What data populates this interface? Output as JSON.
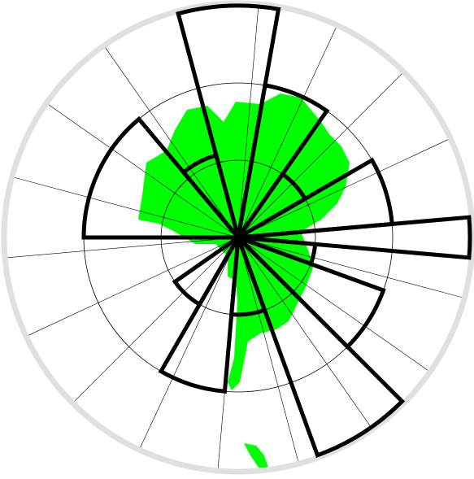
{
  "chart_data": {
    "type": "polar-bar",
    "theta": [
      155,
      117.5,
      92.5,
      67.5,
      42.5,
      17.5,
      0,
      -12.5,
      -32.5,
      -57.5,
      -82.5,
      -107.5,
      -132.5
    ],
    "width": [
      50,
      25,
      25,
      25,
      25,
      25,
      10,
      15,
      25,
      25,
      25,
      25,
      25
    ],
    "values": [
      2,
      1.1,
      3,
      2,
      1,
      2,
      3,
      1,
      2,
      3,
      1,
      2,
      1
    ],
    "color": "#000000",
    "rlim": [
      0,
      3
    ],
    "rticks": [
      1,
      2,
      3
    ],
    "grid": true
  }
}
